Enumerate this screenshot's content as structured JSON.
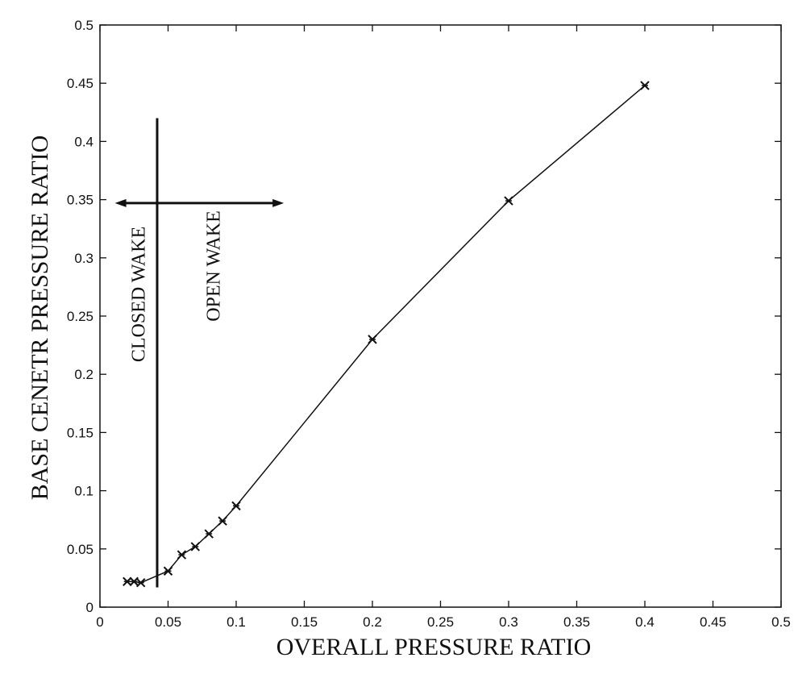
{
  "chart_data": {
    "type": "line",
    "title": "",
    "xlabel": "OVERALL PRESSURE RATIO",
    "ylabel": "BASE CENETR PRESSURE RATIO",
    "xlim": [
      0,
      0.5
    ],
    "ylim": [
      0,
      0.5
    ],
    "xticks": [
      "0",
      "0.05",
      "0.1",
      "0.15",
      "0.2",
      "0.25",
      "0.3",
      "0.35",
      "0.4",
      "0.45",
      "0.5"
    ],
    "yticks": [
      "0",
      "0.05",
      "0.1",
      "0.15",
      "0.2",
      "0.25",
      "0.3",
      "0.35",
      "0.4",
      "0.45",
      "0.5"
    ],
    "grid": false,
    "marker": "x",
    "series": [
      {
        "x": [
          0.02,
          0.025,
          0.03,
          0.05,
          0.06,
          0.07,
          0.08,
          0.09,
          0.1,
          0.2,
          0.3,
          0.4
        ],
        "y": [
          0.022,
          0.022,
          0.021,
          0.031,
          0.045,
          0.052,
          0.063,
          0.074,
          0.087,
          0.23,
          0.349,
          0.448
        ]
      }
    ],
    "annotations": {
      "closed_wake": "CLOSED WAKE",
      "open_wake": "OPEN WAKE",
      "boundary_x": 0.042,
      "boundary_y_top": 0.42,
      "arrow_y": 0.347,
      "arrow_x_range": [
        0.011,
        0.135
      ]
    }
  }
}
